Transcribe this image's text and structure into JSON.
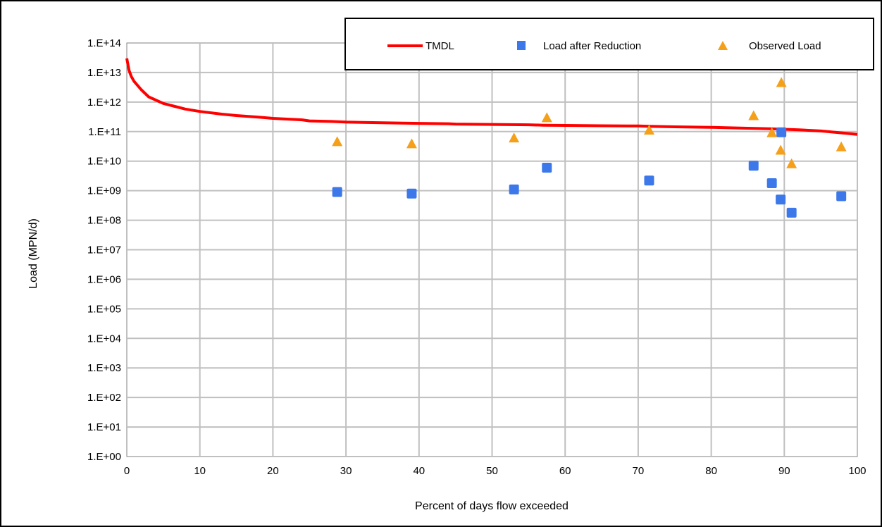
{
  "chart_data": {
    "type": "scatter",
    "title": "",
    "xlabel": "Percent of days flow exceeded",
    "ylabel": "Load (MPN/d)",
    "xlim": [
      0,
      100
    ],
    "ylim_exponent": [
      0,
      14
    ],
    "y_scale": "log10",
    "grid": true,
    "legend_placement": "top-right",
    "x_ticks": [
      "0",
      "10",
      "20",
      "30",
      "40",
      "50",
      "60",
      "70",
      "80",
      "90",
      "100"
    ],
    "y_ticks": [
      "1.E+00",
      "1.E+01",
      "1.E+02",
      "1.E+03",
      "1.E+04",
      "1.E+05",
      "1.E+06",
      "1.E+07",
      "1.E+08",
      "1.E+09",
      "1.E+10",
      "1.E+11",
      "1.E+12",
      "1.E+13",
      "1.E+14"
    ],
    "series": [
      {
        "name": "TMDL",
        "kind": "line",
        "color": "#ff0000",
        "x": [
          0,
          0.3,
          0.6,
          1,
          2,
          3,
          5,
          8,
          10,
          13,
          15,
          18,
          20,
          24,
          25,
          28,
          30,
          35,
          40,
          44,
          45,
          50,
          55,
          57,
          60,
          65,
          70,
          72,
          75,
          80,
          82,
          85,
          88,
          90,
          92,
          95,
          98,
          100
        ],
        "y": [
          30000000000000.0,
          12000000000000.0,
          7500000000000.0,
          5000000000000.0,
          2600000000000.0,
          1500000000000.0,
          900000000000.0,
          580000000000.0,
          480000000000.0,
          390000000000.0,
          350000000000.0,
          310000000000.0,
          280000000000.0,
          250000000000.0,
          230000000000.0,
          220000000000.0,
          210000000000.0,
          200000000000.0,
          190000000000.0,
          185000000000.0,
          180000000000.0,
          175000000000.0,
          170000000000.0,
          165000000000.0,
          162000000000.0,
          158000000000.0,
          155000000000.0,
          150000000000.0,
          145000000000.0,
          140000000000.0,
          135000000000.0,
          130000000000.0,
          125000000000.0,
          120000000000.0,
          115000000000.0,
          105000000000.0,
          90000000000.0,
          80000000000.0
        ]
      },
      {
        "name": "Load after Reduction",
        "kind": "square",
        "color": "#3c78ea",
        "x": [
          28.8,
          39,
          53,
          57.5,
          71.5,
          85.8,
          88.3,
          89.5,
          89.6,
          91,
          97.8
        ],
        "y": [
          900000000.0,
          800000000.0,
          1100000000.0,
          6000000000.0,
          2200000000.0,
          7000000000.0,
          1800000000.0,
          500000000.0,
          95000000000.0,
          180000000.0,
          650000000.0
        ]
      },
      {
        "name": "Observed Load",
        "kind": "triangle",
        "color": "#f5a01a",
        "x": [
          28.8,
          39,
          53,
          57.5,
          71.5,
          85.8,
          88.3,
          89.5,
          89.6,
          91,
          97.8
        ],
        "y": [
          45000000000.0,
          38000000000.0,
          60000000000.0,
          290000000000.0,
          110000000000.0,
          340000000000.0,
          90000000000.0,
          23000000000.0,
          4500000000000.0,
          8000000000.0,
          30000000000.0
        ]
      }
    ]
  }
}
